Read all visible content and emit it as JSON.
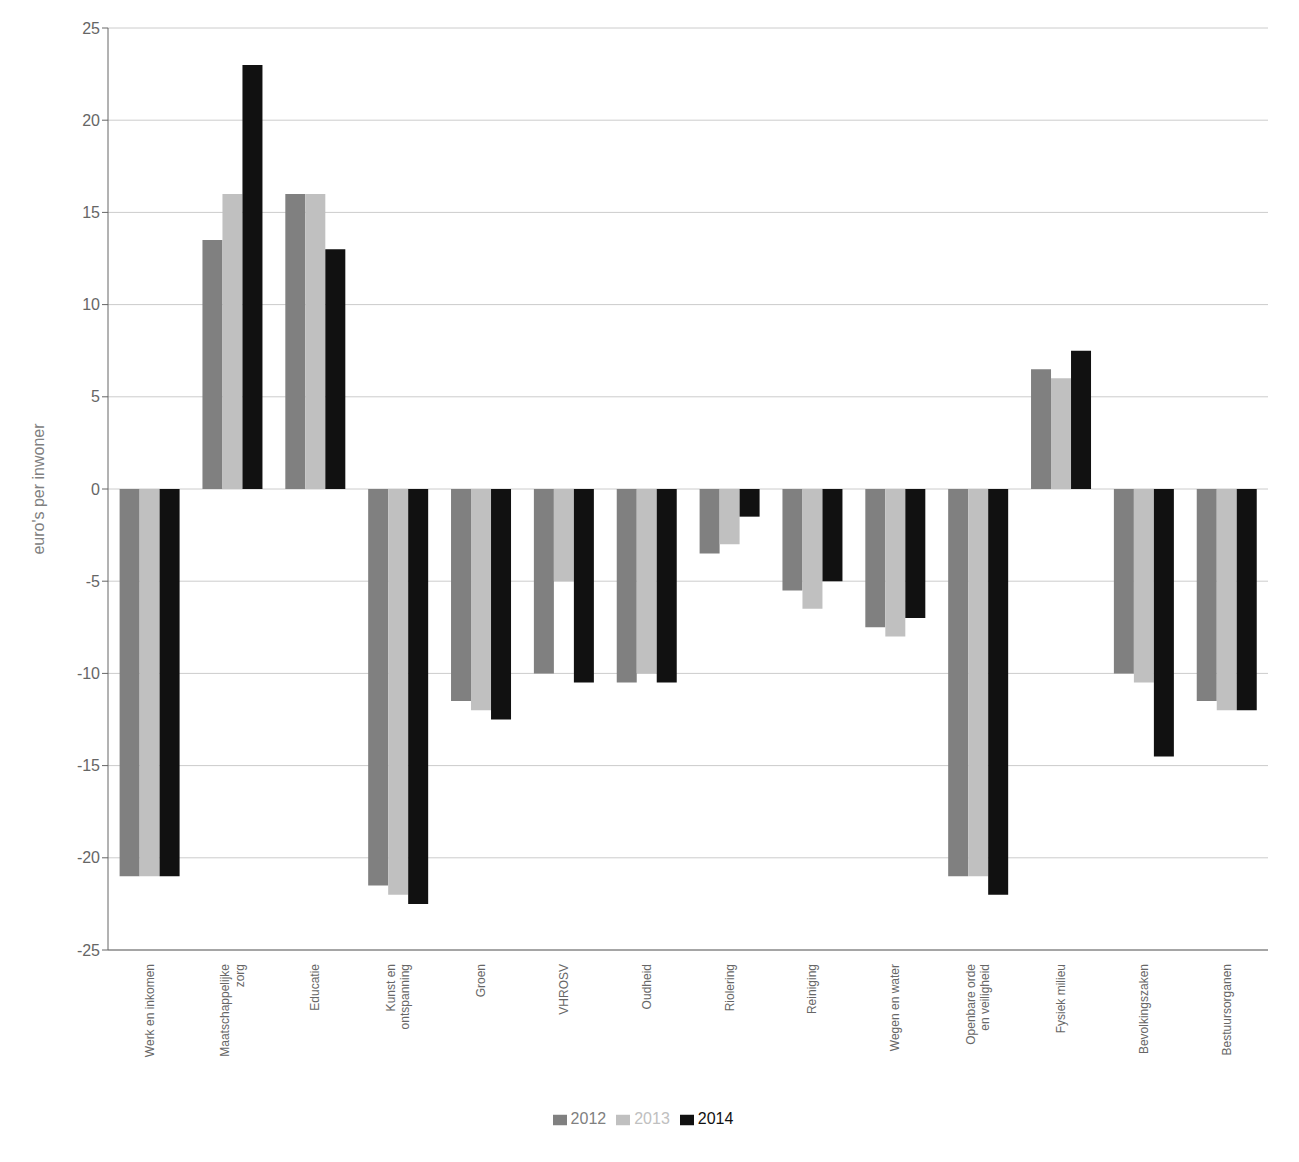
{
  "chart_data": {
    "type": "bar",
    "categories": [
      "Werk en inkomen",
      "Maatschappelijke\nzorg",
      "Educatie",
      "Kunst en\nontspanning",
      "Groen",
      "VHROSV",
      "Oudheid",
      "Riolering",
      "Reiniging",
      "Wegen en water",
      "Openbare orde\nen veiligheid",
      "Fysiek milieu",
      "Bevolkingszaken",
      "Bestuursorganen"
    ],
    "series": [
      {
        "name": "2012",
        "color": "#808080",
        "values": [
          -21,
          13.5,
          16,
          -21.5,
          -11.5,
          -10,
          -10.5,
          -3.5,
          -5.5,
          -7.5,
          -21,
          6.5,
          -10,
          -11.5
        ]
      },
      {
        "name": "2013",
        "color": "#c0c0c0",
        "values": [
          -21,
          16,
          16,
          -22,
          -12,
          -5,
          -10,
          -3,
          -6.5,
          -8,
          -21,
          6,
          -10.5,
          -12
        ]
      },
      {
        "name": "2014",
        "color": "#111111",
        "values": [
          -21,
          23,
          13,
          -22.5,
          -12.5,
          -10.5,
          -10.5,
          -1.5,
          -5,
          -7,
          -22,
          7.5,
          -14.5,
          -12
        ]
      }
    ],
    "ylabel": "euro's per inwoner",
    "ylim": [
      -25,
      25
    ],
    "yticks": [
      -25,
      -20,
      -15,
      -10,
      -5,
      0,
      5,
      10,
      15,
      20,
      25
    ],
    "grid": true,
    "legend": "bottom"
  }
}
